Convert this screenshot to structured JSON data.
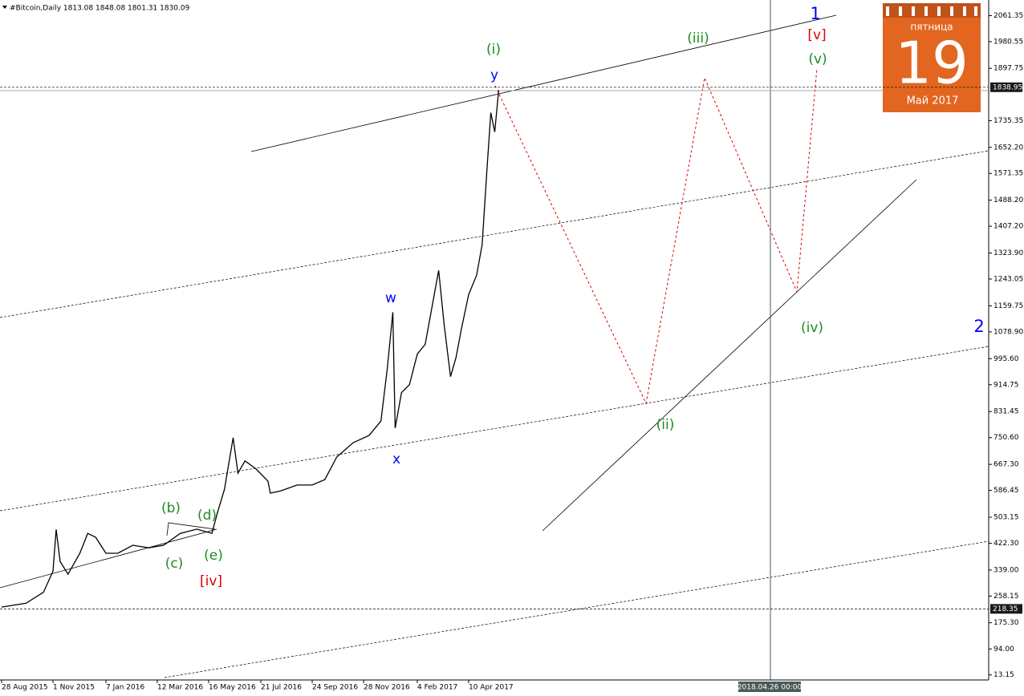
{
  "chart_data": {
    "type": "line",
    "title": "#Bitcoin,Daily 1813.08 1848.08 1801.31 1830.09",
    "color": "#000000",
    "x": [
      "28 Aug 2015",
      "28 Sep 2015",
      "20 Oct 2015",
      "1 Nov 2015",
      "5 Nov 2015",
      "10 Nov 2015",
      "20 Nov 2015",
      "5 Dec 2015",
      "15 Dec 2015",
      "25 Dec 2015",
      "7 Jan 2016",
      "22 Jan 2016",
      "10 Feb 2016",
      "1 Mar 2016",
      "20 Mar 2016",
      "10 Apr 2016",
      "1 May 2016",
      "20 May 2016",
      "27 May 2016",
      "5 Jun 2016",
      "16 Jun 2016",
      "22 Jun 2016",
      "1 Jul 2016",
      "15 Jul 2016",
      "30 Jul 2016",
      "2 Aug 2016",
      "15 Aug 2016",
      "5 Sep 2016",
      "24 Sep 2016",
      "10 Oct 2016",
      "25 Oct 2016",
      "15 Nov 2016",
      "5 Dec 2016",
      "20 Dec 2016",
      "28 Dec 2016",
      "4 Jan 2017",
      "7 Jan 2017",
      "15 Jan 2017",
      "25 Jan 2017",
      "4 Feb 2017",
      "14 Feb 2017",
      "24 Feb 2017",
      "3 Mar 2017",
      "10 Mar 2017",
      "18 Mar 2017",
      "25 Mar 2017",
      "1 Apr 2017",
      "10 Apr 2017",
      "20 Apr 2017",
      "27 Apr 2017",
      "3 May 2017",
      "8 May 2017",
      "13 May 2017",
      "18 May 2017"
    ],
    "values": [
      224,
      236,
      270,
      335,
      465,
      366,
      326,
      391,
      453,
      441,
      391,
      391,
      416,
      408,
      416,
      453,
      466,
      453,
      516,
      590,
      750,
      640,
      678,
      653,
      615,
      578,
      585,
      603,
      603,
      620,
      690,
      735,
      757,
      802,
      965,
      1140,
      780,
      890,
      915,
      1010,
      1040,
      1175,
      1270,
      1100,
      940,
      1000,
      1090,
      1195,
      1255,
      1350,
      1580,
      1760,
      1700,
      1830
    ],
    "xlim": [
      "28 Aug 2015",
      "28 Jan 2019"
    ],
    "xticks": [
      "28 Aug 2015",
      "1 Nov 2015",
      "7 Jan 2016",
      "12 Mar 2016",
      "16 May 2016",
      "21 Jul 2016",
      "24 Sep 2016",
      "28 Nov 2016",
      "4 Feb 2017",
      "10 Apr 2017"
    ],
    "ylim": [
      0,
      2110
    ],
    "yticks": [
      2061.35,
      1980.55,
      1897.75,
      1735.35,
      {
        "value": 1652.2,
        "label": "1652.20"
      },
      1571.35,
      {
        "value": 1488.2,
        "label": "1488.20"
      },
      {
        "value": 1407.2,
        "label": "1407.20"
      },
      {
        "value": 1323.9,
        "label": "1323.90"
      },
      1243.05,
      1159.75,
      {
        "value": 1078.9,
        "label": "1078.90"
      },
      {
        "value": 995.6,
        "label": "995.60"
      },
      914.75,
      831.45,
      {
        "value": 750.6,
        "label": "750.60"
      },
      {
        "value": 667.3,
        "label": "667.30"
      },
      586.45,
      503.15,
      {
        "value": 422.3,
        "label": "422.30"
      },
      {
        "value": 339,
        "label": "339.00"
      },
      258.15,
      {
        "value": 175.3,
        "label": "175.30"
      },
      {
        "value": 94,
        "label": "94.00"
      },
      13.15
    ],
    "price_lines": [
      1838.95,
      218.35
    ],
    "cursor_time_label": "2018.04.26 00:00",
    "annotations": [
      {
        "text": "(i)",
        "color": "#1e8c1e"
      },
      {
        "text": "y",
        "color": "#0000ff"
      },
      {
        "text": "w",
        "color": "#0000ff"
      },
      {
        "text": "x",
        "color": "#0000ff"
      },
      {
        "text": "(iii)",
        "color": "#1e8c1e"
      },
      {
        "text": "1",
        "color": "#0000ff"
      },
      {
        "text": "[v]",
        "color": "#e00000"
      },
      {
        "text": "(v)",
        "color": "#1e8c1e"
      },
      {
        "text": "(iv)",
        "color": "#1e8c1e"
      },
      {
        "text": "(ii)",
        "color": "#1e8c1e"
      },
      {
        "text": "2",
        "color": "#0000ff"
      },
      {
        "text": "(b)",
        "color": "#1e8c1e"
      },
      {
        "text": "(d)",
        "color": "#1e8c1e"
      },
      {
        "text": "(e)",
        "color": "#1e8c1e"
      },
      {
        "text": "(c)",
        "color": "#1e8c1e"
      },
      {
        "text": "[iv]",
        "color": "#e00000"
      }
    ],
    "calendar": {
      "weekday": "пятница",
      "day": 19,
      "month": "Май 2017"
    }
  }
}
